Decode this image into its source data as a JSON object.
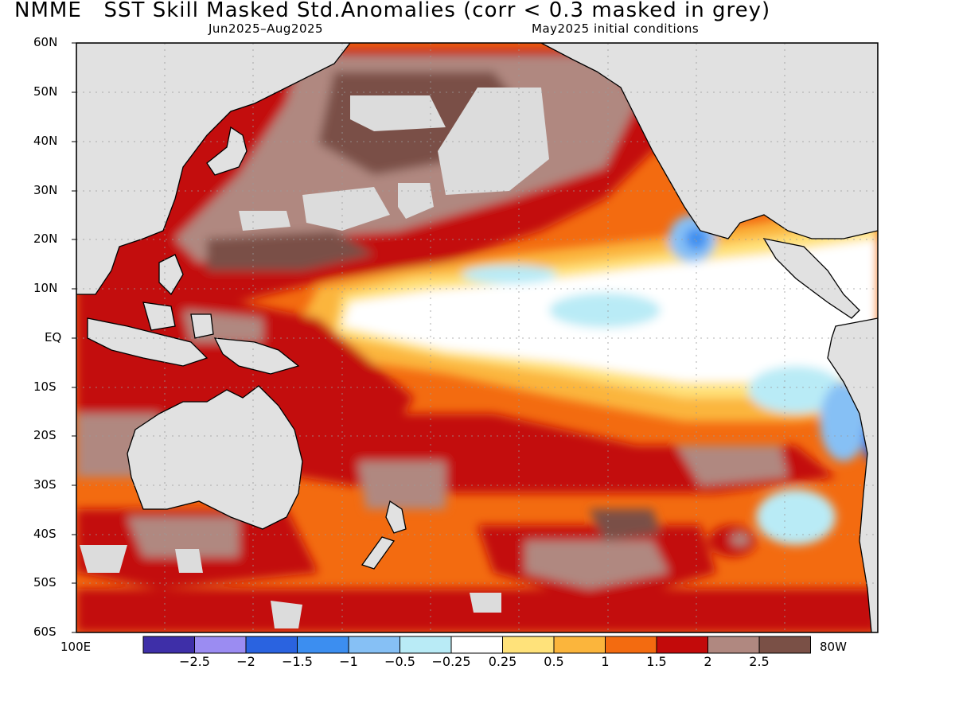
{
  "title": "NMME   SST Skill Masked Std.Anomalies (corr < 0.3 masked in grey)",
  "subtitle_left": "Jun2025–Aug2025",
  "subtitle_right": "May2025 initial conditions",
  "lat_labels": [
    "60N",
    "50N",
    "40N",
    "30N",
    "20N",
    "10N",
    "EQ",
    "10S",
    "20S",
    "30S",
    "40S",
    "50S",
    "60S"
  ],
  "lon_labels": {
    "west": "100E",
    "east": "80W"
  },
  "colorbar": {
    "colors": [
      "#3e2fa8",
      "#9b8cf2",
      "#2a63e0",
      "#3c8ef0",
      "#86c0f5",
      "#b9ebf6",
      "#ffffff",
      "#ffe27a",
      "#fbb53c",
      "#f36b10",
      "#c30a0a",
      "#b08880",
      "#7a5046"
    ],
    "tick_labels": [
      "−2.5",
      "−2",
      "−1.5",
      "−1",
      "−0.5",
      "−0.25",
      "0.25",
      "0.5",
      "1",
      "1.5",
      "2",
      "2.5"
    ]
  },
  "colors": {
    "land": "#e1e1e1",
    "mask": "#dcdcdc",
    "coast": "#000000"
  }
}
